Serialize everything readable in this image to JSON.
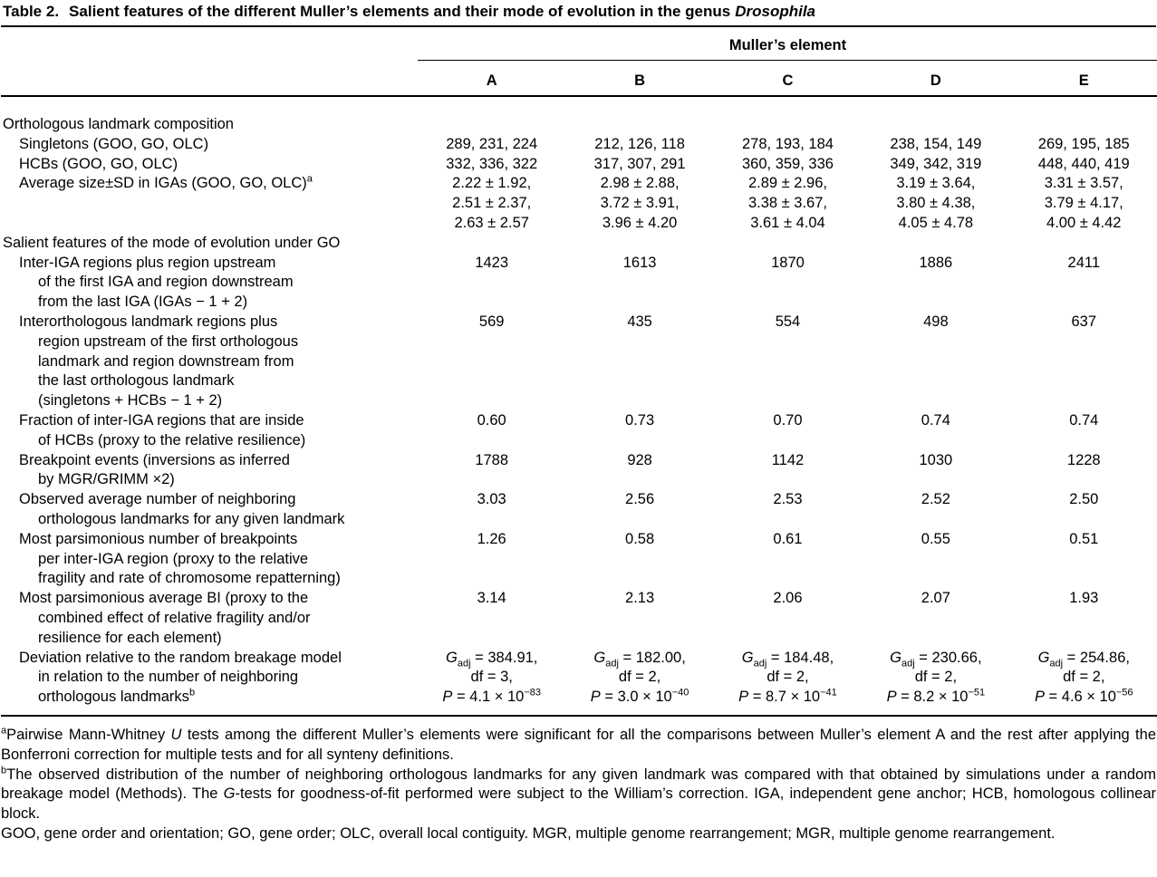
{
  "title": {
    "label": "Table 2.",
    "text": "Salient features of the different Muller’s elements and their mode of evolution in the genus",
    "genus": "Drosophila"
  },
  "table": {
    "group_header": "Muller’s element",
    "columns": [
      "A",
      "B",
      "C",
      "D",
      "E"
    ],
    "rows": [
      {
        "type": "section",
        "label": "Orthologous landmark composition"
      },
      {
        "type": "data",
        "label": [
          "Singletons (GOO, GO, OLC)"
        ],
        "cells": [
          [
            "289, 231, 224"
          ],
          [
            "212, 126, 118"
          ],
          [
            "278, 193, 184"
          ],
          [
            "238, 154, 149"
          ],
          [
            "269, 195, 185"
          ]
        ]
      },
      {
        "type": "data",
        "label": [
          "HCBs (GOO, GO, OLC)"
        ],
        "cells": [
          [
            "332, 336, 322"
          ],
          [
            "317, 307, 291"
          ],
          [
            "360, 359, 336"
          ],
          [
            "349, 342, 319"
          ],
          [
            "448, 440, 419"
          ]
        ]
      },
      {
        "type": "data",
        "label": [
          "Average size±SD in IGAs (GOO, GO, OLC)^{a}"
        ],
        "cells": [
          [
            "2.22 ± 1.92,",
            "2.51 ± 2.37,",
            "2.63 ± 2.57"
          ],
          [
            "2.98 ± 2.88,",
            "3.72 ± 3.91,",
            "3.96 ± 4.20"
          ],
          [
            "2.89 ± 2.96,",
            "3.38 ± 3.67,",
            "3.61 ± 4.04"
          ],
          [
            "3.19 ± 3.64,",
            "3.80 ± 4.38,",
            "4.05 ± 4.78"
          ],
          [
            "3.31 ± 3.57,",
            "3.79 ± 4.17,",
            "4.00 ± 4.42"
          ]
        ]
      },
      {
        "type": "section",
        "label": "Salient features of the mode of evolution under GO"
      },
      {
        "type": "data",
        "label": [
          "Inter-IGA regions plus region upstream",
          "of the first IGA and region downstream",
          "from the last IGA (IGAs − 1 + 2)"
        ],
        "cells": [
          [
            "1423"
          ],
          [
            "1613"
          ],
          [
            "1870"
          ],
          [
            "1886"
          ],
          [
            "2411"
          ]
        ]
      },
      {
        "type": "data",
        "label": [
          "Interorthologous landmark regions plus",
          "region upstream of the first orthologous",
          "landmark and region downstream from",
          "the last orthologous landmark",
          "(singletons + HCBs − 1 + 2)"
        ],
        "cells": [
          [
            "569"
          ],
          [
            "435"
          ],
          [
            "554"
          ],
          [
            "498"
          ],
          [
            "637"
          ]
        ]
      },
      {
        "type": "data",
        "label": [
          "Fraction of inter-IGA regions that are inside",
          "of HCBs (proxy to the relative resilience)"
        ],
        "cells": [
          [
            "0.60"
          ],
          [
            "0.73"
          ],
          [
            "0.70"
          ],
          [
            "0.74"
          ],
          [
            "0.74"
          ]
        ]
      },
      {
        "type": "data",
        "label": [
          "Breakpoint events (inversions as inferred",
          "by MGR/GRIMM ×2)"
        ],
        "cells": [
          [
            "1788"
          ],
          [
            "928"
          ],
          [
            "1142"
          ],
          [
            "1030"
          ],
          [
            "1228"
          ]
        ]
      },
      {
        "type": "data",
        "label": [
          "Observed average number of neighboring",
          "orthologous landmarks for any given landmark"
        ],
        "cells": [
          [
            "3.03"
          ],
          [
            "2.56"
          ],
          [
            "2.53"
          ],
          [
            "2.52"
          ],
          [
            "2.50"
          ]
        ]
      },
      {
        "type": "data",
        "label": [
          "Most parsimonious number of breakpoints",
          "per inter-IGA region (proxy to the relative",
          "fragility and rate of chromosome repatterning)"
        ],
        "cells": [
          [
            "1.26"
          ],
          [
            "0.58"
          ],
          [
            "0.61"
          ],
          [
            "0.55"
          ],
          [
            "0.51"
          ]
        ]
      },
      {
        "type": "data",
        "label": [
          "Most parsimonious average BI (proxy to the",
          "combined effect of relative fragility and/or",
          "resilience for each element)"
        ],
        "cells": [
          [
            "3.14"
          ],
          [
            "2.13"
          ],
          [
            "2.06"
          ],
          [
            "2.07"
          ],
          [
            "1.93"
          ]
        ]
      },
      {
        "type": "data",
        "label": [
          "Deviation relative to the random breakage model",
          "in relation to the number of neighboring",
          "orthologous landmarks^{b}"
        ],
        "cells": [
          [
            "_G_~{adj} = 384.91,",
            "df = 3,",
            "_P_ = 4.1 × 10^{−83}"
          ],
          [
            "_G_~{adj} = 182.00,",
            "df = 2,",
            "_P_ = 3.0 × 10^{−40}"
          ],
          [
            "_G_~{adj} = 184.48,",
            "df = 2,",
            "_P_ = 8.7 × 10^{−41}"
          ],
          [
            "_G_~{adj} = 230.66,",
            "df = 2,",
            "_P_ = 8.2 × 10^{−51}"
          ],
          [
            "_G_~{adj} = 254.86,",
            "df = 2,",
            "_P_ = 4.6 × 10^{−56}"
          ]
        ]
      }
    ]
  },
  "footnotes": [
    "^{a}Pairwise Mann-Whitney _U_ tests among the different Muller’s elements were significant for all the comparisons between Muller’s element A and the rest after applying the Bonferroni correction for multiple tests and for all synteny definitions.",
    "^{b}The observed distribution of the number of neighboring orthologous landmarks for any given landmark was compared with that obtained by simulations under a random breakage model (Methods). The _G_-tests for goodness-of-fit performed were subject to the William’s correction. IGA, independent gene anchor; HCB, homologous collinear block.",
    "GOO, gene order and orientation; GO, gene order; OLC, overall local contiguity. MGR, multiple genome rearrangement; MGR, multiple genome rearrangement."
  ]
}
